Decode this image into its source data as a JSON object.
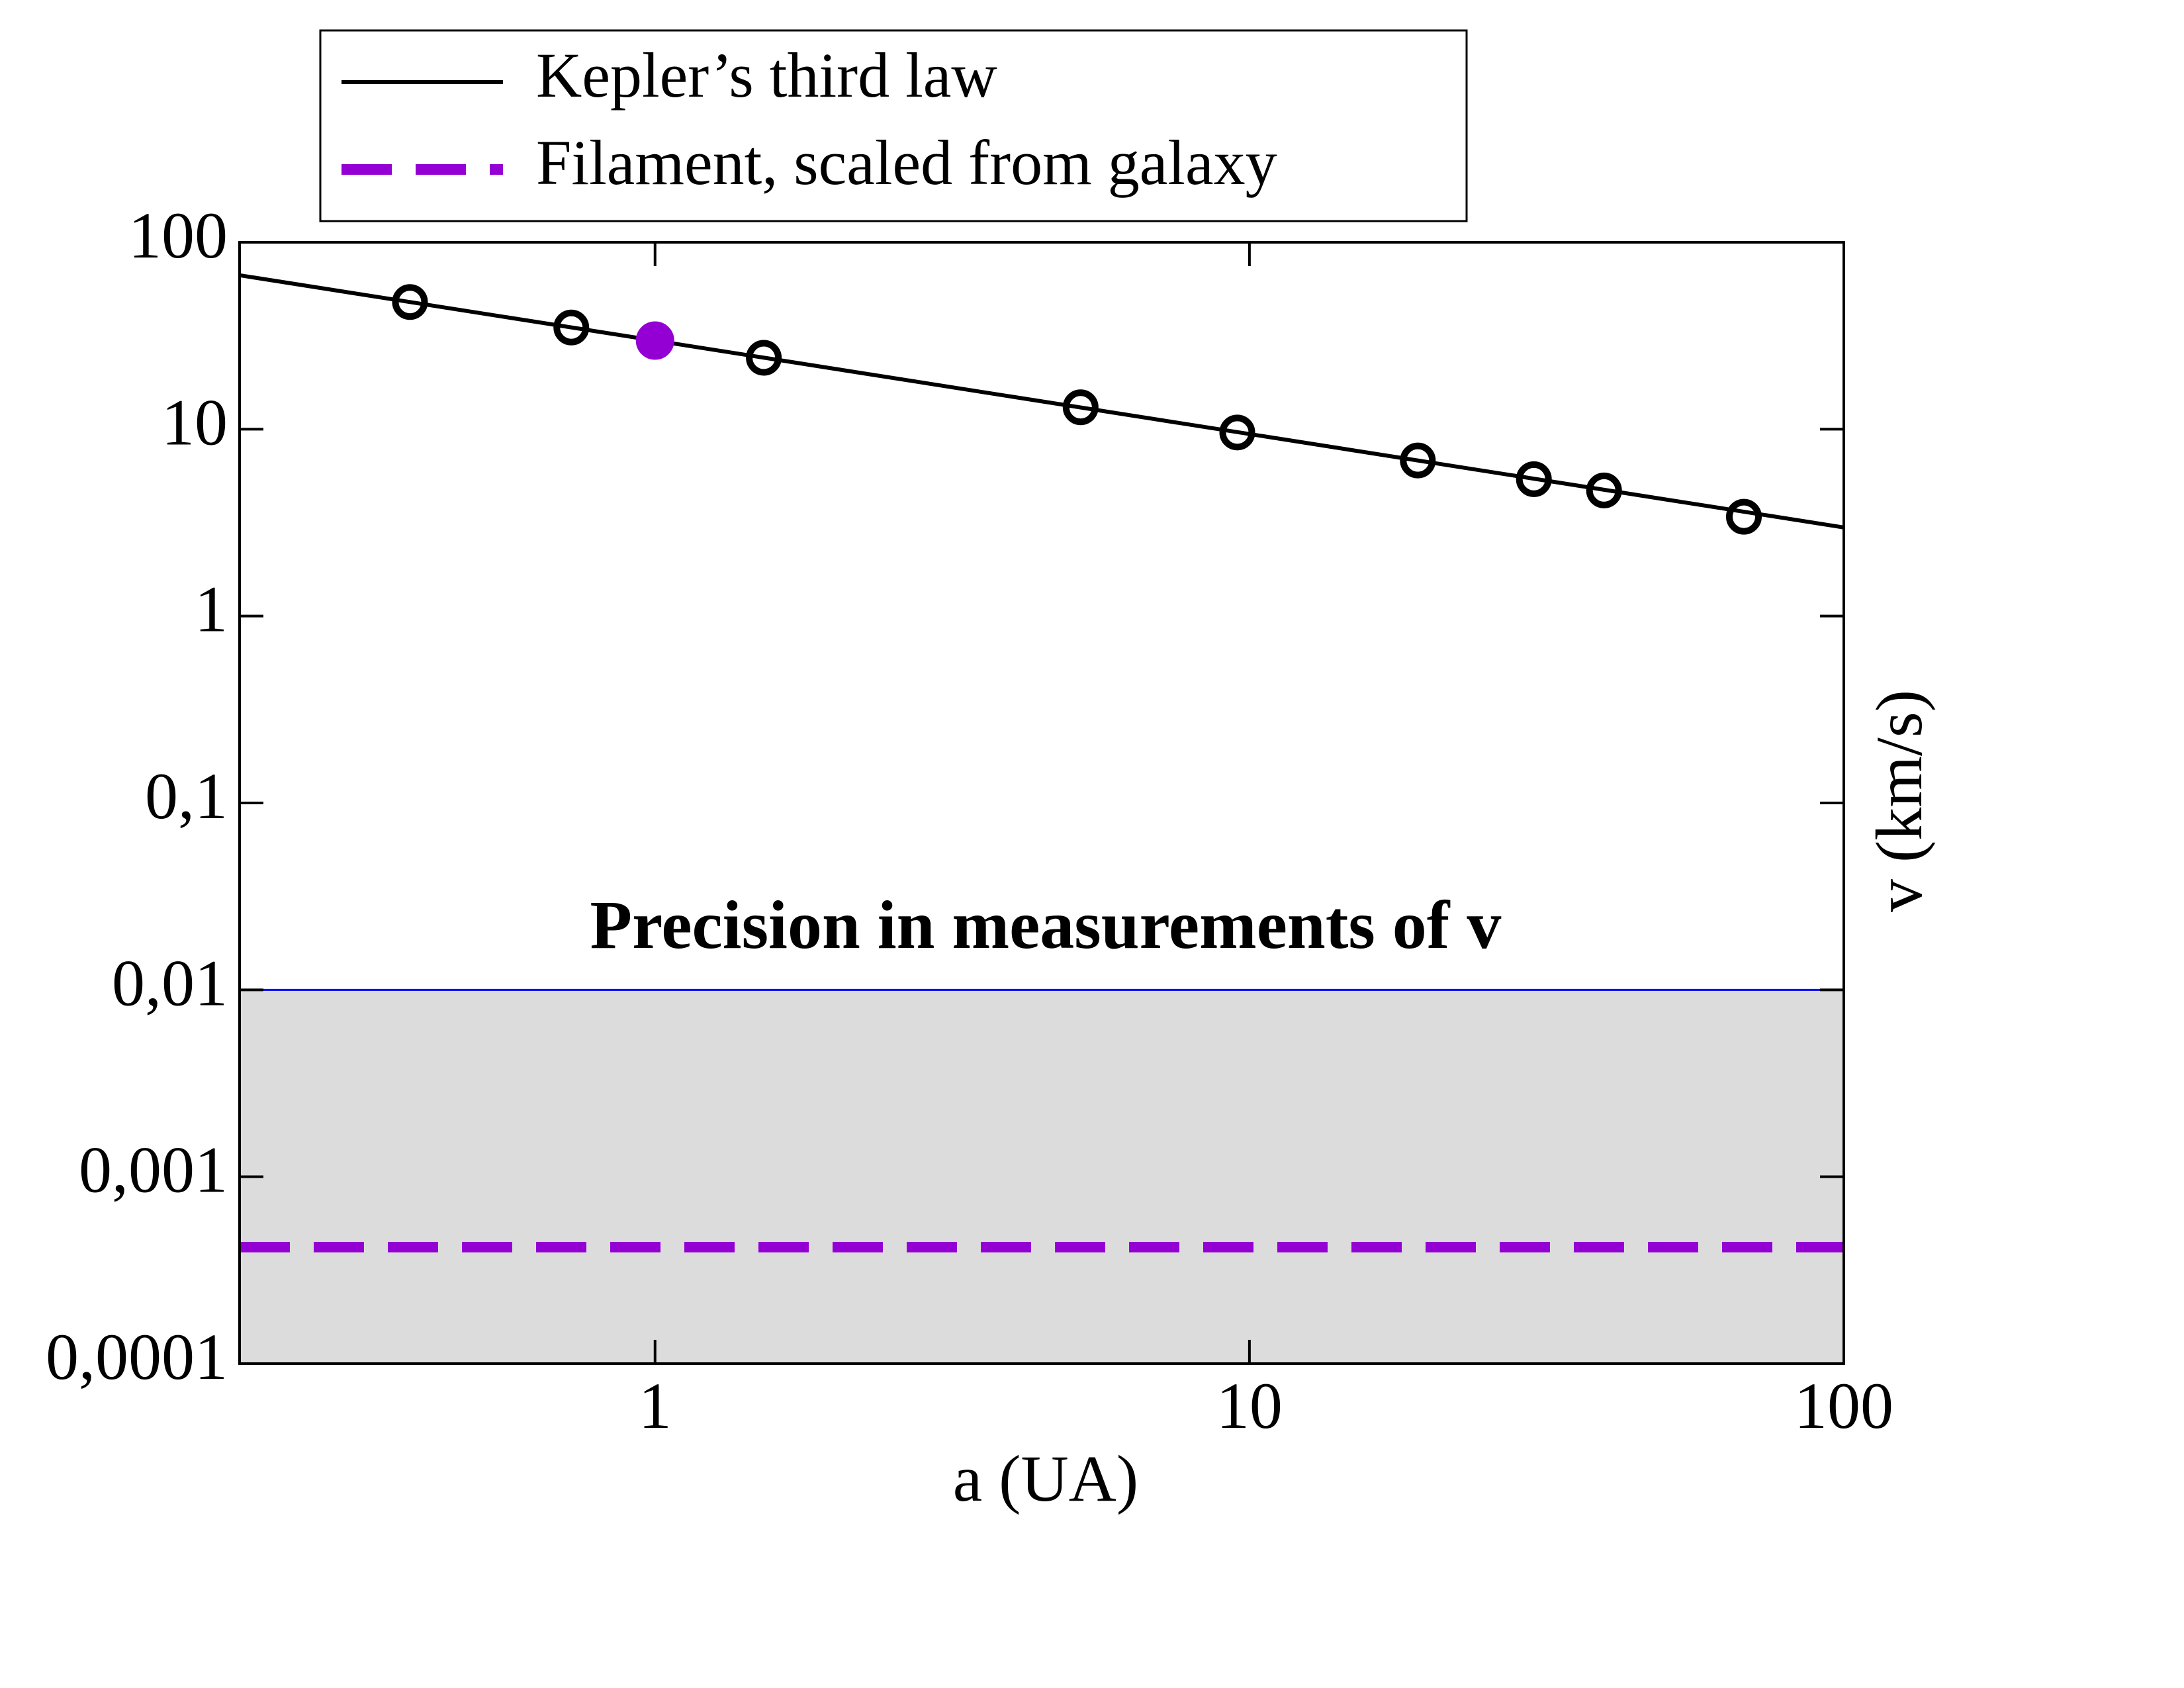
{
  "chart_data": {
    "type": "line",
    "xlabel": "a (UA)",
    "ylabel": "v (km/s)",
    "annotation": "Precision in measurements of v",
    "xscale": "log",
    "yscale": "log",
    "xlim": [
      0.2,
      100
    ],
    "ylim": [
      0.0001,
      100
    ],
    "xticks": [
      1,
      10,
      100
    ],
    "yticks": [
      {
        "value": 0.0001,
        "label": "0,0001"
      },
      {
        "value": 0.001,
        "label": "0,001"
      },
      {
        "value": 0.01,
        "label": "0,01"
      },
      {
        "value": 0.1,
        "label": "0,1"
      },
      1,
      10,
      100
    ],
    "series": [
      {
        "name": "Kepler’s third law",
        "color": "#000000",
        "dash": false,
        "x": [
          0.2,
          100
        ],
        "values": [
          66.6,
          2.98
        ]
      },
      {
        "name": "Filament, scaled from galaxy",
        "color": "#9400d3",
        "dash": true,
        "x": [
          0.2,
          100
        ],
        "values": [
          0.00042,
          0.00042
        ]
      }
    ],
    "points": {
      "x": [
        0.387,
        0.723,
        1,
        1.524,
        5.2,
        9.54,
        19.2,
        30.1,
        39.5,
        67.9
      ],
      "values": [
        47.9,
        35,
        29.8,
        24.1,
        13.1,
        9.6,
        6.8,
        5.4,
        4.7,
        3.4
      ],
      "colors": [
        "#000000",
        "#000000",
        "#9400d3",
        "#000000",
        "#000000",
        "#000000",
        "#000000",
        "#000000",
        "#000000",
        "#000000"
      ]
    },
    "band": {
      "ylim": [
        0.0001,
        0.01
      ],
      "color": "#dcdcdc",
      "edge_color": "#0000ff"
    },
    "legend": "top"
  }
}
